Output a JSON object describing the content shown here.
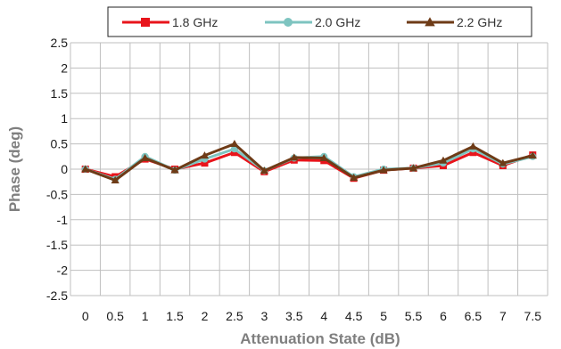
{
  "chart_data": {
    "type": "line",
    "xlabel": "Attenuation State (dB)",
    "ylabel": "Phase (deg)",
    "x": [
      0,
      0.5,
      1,
      1.5,
      2,
      2.5,
      3,
      3.5,
      4,
      4.5,
      5,
      5.5,
      6,
      6.5,
      7,
      7.5
    ],
    "x_tick_labels": [
      "0",
      "0.5",
      "1",
      "1.5",
      "2",
      "2.5",
      "3",
      "3.5",
      "4",
      "4.5",
      "5",
      "5.5",
      "6",
      "6.5",
      "7",
      "7.5"
    ],
    "ylim": [
      -2.5,
      2.5
    ],
    "y_ticks": [
      -2.5,
      -2,
      -1.5,
      -1,
      -0.5,
      0,
      0.5,
      1,
      1.5,
      2,
      2.5
    ],
    "y_tick_labels": [
      "-2.5",
      "-2",
      "-1.5",
      "-1",
      "-0.5",
      "0",
      "0.5",
      "1",
      "1.5",
      "2",
      "2.5"
    ],
    "grid": true,
    "legend_position": "top-center",
    "series": [
      {
        "name": "1.8 GHz",
        "color": "#e8141b",
        "marker": "square",
        "values": [
          0,
          -0.15,
          0.2,
          0,
          0.12,
          0.33,
          -0.05,
          0.18,
          0.17,
          -0.18,
          -0.02,
          0.02,
          0.07,
          0.33,
          0.07,
          0.28
        ]
      },
      {
        "name": "2.0 GHz",
        "color": "#7ec4c0",
        "marker": "circle",
        "values": [
          0,
          -0.2,
          0.25,
          -0.02,
          0.2,
          0.4,
          -0.03,
          0.22,
          0.25,
          -0.15,
          0,
          0.02,
          0.12,
          0.4,
          0.1,
          0.25
        ]
      },
      {
        "name": "2.2 GHz",
        "color": "#6e3b17",
        "marker": "triangle",
        "values": [
          0,
          -0.22,
          0.22,
          -0.02,
          0.27,
          0.5,
          -0.03,
          0.23,
          0.22,
          -0.17,
          -0.02,
          0.02,
          0.17,
          0.45,
          0.12,
          0.27
        ]
      }
    ]
  }
}
